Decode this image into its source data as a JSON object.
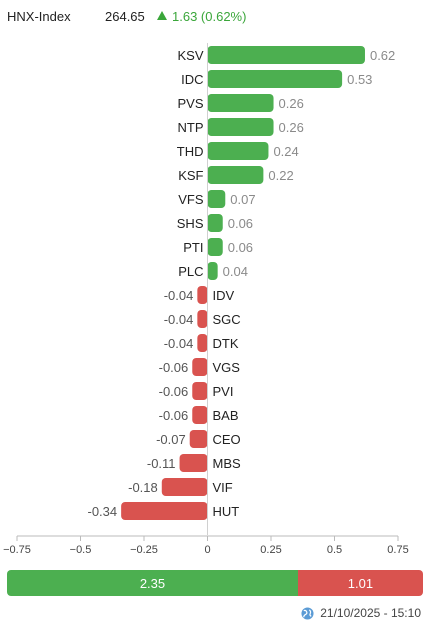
{
  "header": {
    "index_name": "HNX-Index",
    "index_value": "264.65",
    "change": "1.63 (0.62%)",
    "change_color": "#3aa63a"
  },
  "chart_data": {
    "type": "bar",
    "orientation": "horizontal",
    "categories": [
      "KSV",
      "IDC",
      "PVS",
      "NTP",
      "THD",
      "KSF",
      "VFS",
      "SHS",
      "PTI",
      "PLC",
      "IDV",
      "SGC",
      "DTK",
      "VGS",
      "PVI",
      "BAB",
      "CEO",
      "MBS",
      "VIF",
      "HUT"
    ],
    "values": [
      0.62,
      0.53,
      0.26,
      0.26,
      0.24,
      0.22,
      0.07,
      0.06,
      0.06,
      0.04,
      -0.04,
      -0.04,
      -0.04,
      -0.06,
      -0.06,
      -0.06,
      -0.07,
      -0.11,
      -0.18,
      -0.34
    ],
    "xlim": [
      -0.75,
      0.75
    ],
    "xticks": [
      -0.75,
      -0.5,
      -0.25,
      0,
      0.25,
      0.5,
      0.75
    ],
    "xtick_labels": [
      "−0.75",
      "−0.5",
      "−0.25",
      "0",
      "0.25",
      "0.5",
      "0.75"
    ],
    "positive_color": "#4caf50",
    "negative_color": "#d9534f",
    "grid": false
  },
  "footer": {
    "up_total": "2.35",
    "down_total": "1.01",
    "timestamp": "21/10/2025 - 15:10"
  }
}
